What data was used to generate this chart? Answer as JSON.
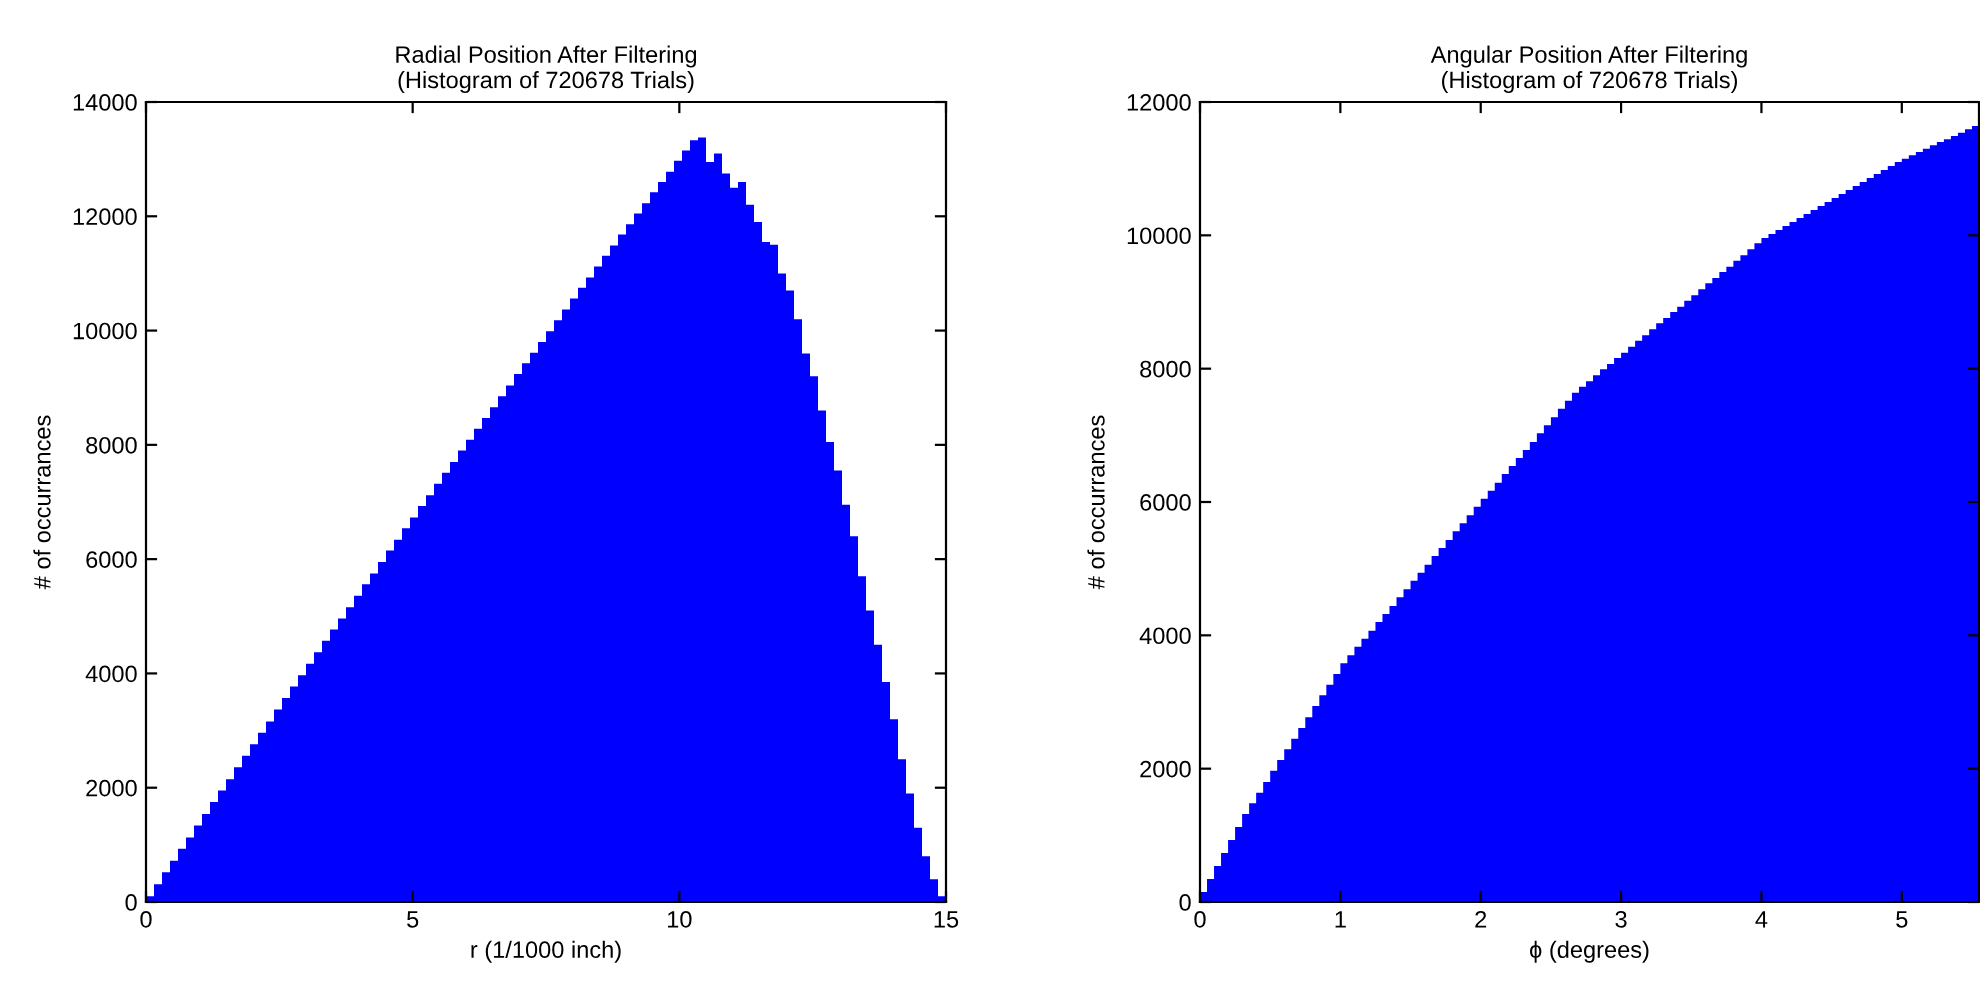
{
  "chart_data": [
    {
      "type": "histogram",
      "title": "Radial Position After Filtering\n(Histogram of 720678 Trials)",
      "xlabel": "r (1/1000 inch)",
      "ylabel": "# of occurrances",
      "color": "#0000ff",
      "bins": [
        0,
        0.15,
        0.3,
        0.45,
        0.6,
        0.75,
        0.9,
        1.05,
        1.2,
        1.35,
        1.5,
        1.65,
        1.8,
        1.95,
        2.1,
        2.25,
        2.4,
        2.55,
        2.7,
        2.85,
        3,
        3.15,
        3.3,
        3.45,
        3.6,
        3.75,
        3.9,
        4.05,
        4.2,
        4.35,
        4.5,
        4.65,
        4.8,
        4.95,
        5.1,
        5.25,
        5.4,
        5.55,
        5.7,
        5.85,
        6,
        6.15,
        6.3,
        6.45,
        6.6,
        6.75,
        6.9,
        7.05,
        7.2,
        7.35,
        7.5,
        7.65,
        7.8,
        7.95,
        8.1,
        8.25,
        8.4,
        8.55,
        8.7,
        8.85,
        9,
        9.15,
        9.3,
        9.45,
        9.6,
        9.75,
        9.9,
        10.05,
        10.2,
        10.35,
        10.5,
        10.65,
        10.8,
        10.95,
        11.1,
        11.25,
        11.4,
        11.55,
        11.7,
        11.85,
        12,
        12.15,
        12.3,
        12.45,
        12.6,
        12.75,
        12.9,
        13.05,
        13.2,
        13.35,
        13.5,
        13.65,
        13.8,
        13.95,
        14.1,
        14.25,
        14.4,
        14.55,
        14.7,
        14.85,
        15
      ],
      "values": [
        100,
        310,
        520,
        720,
        930,
        1130,
        1340,
        1540,
        1750,
        1950,
        2150,
        2360,
        2560,
        2760,
        2960,
        3160,
        3370,
        3570,
        3770,
        3970,
        4170,
        4370,
        4570,
        4770,
        4960,
        5160,
        5360,
        5560,
        5750,
        5950,
        6150,
        6340,
        6540,
        6730,
        6930,
        7120,
        7320,
        7510,
        7700,
        7900,
        8090,
        8280,
        8470,
        8660,
        8850,
        9040,
        9240,
        9430,
        9610,
        9800,
        9990,
        10180,
        10370,
        10560,
        10750,
        10930,
        11120,
        11310,
        11490,
        11680,
        11860,
        12050,
        12230,
        12420,
        12600,
        12780,
        12970,
        13150,
        13330,
        13380,
        12950,
        13100,
        12750,
        12500,
        12600,
        12200,
        11900,
        11550,
        11500,
        11000,
        10700,
        10200,
        9600,
        9200,
        8600,
        8050,
        7550,
        6950,
        6400,
        5700,
        5100,
        4500,
        3850,
        3200,
        2500,
        1900,
        1300,
        800,
        400,
        100
      ],
      "xlim": [
        0,
        15
      ],
      "xticks": [
        0,
        5,
        10,
        15
      ],
      "ylim": [
        0,
        14000
      ],
      "yticks": [
        0,
        2000,
        4000,
        6000,
        8000,
        10000,
        12000,
        14000
      ]
    },
    {
      "type": "histogram",
      "title": "Angular Position After Filtering\n(Histogram of 720678 Trials)",
      "xlabel": "ϕ (degrees)",
      "ylabel": "# of occurrances",
      "color": "#0000ff",
      "bins": [
        0,
        0.05,
        0.1,
        0.15,
        0.2,
        0.25,
        0.3,
        0.35,
        0.4,
        0.45,
        0.5,
        0.55,
        0.6,
        0.65,
        0.7,
        0.75,
        0.8,
        0.85,
        0.9,
        0.95,
        1,
        1.05,
        1.1,
        1.15,
        1.2,
        1.25,
        1.3,
        1.35,
        1.4,
        1.45,
        1.5,
        1.55,
        1.6,
        1.65,
        1.7,
        1.75,
        1.8,
        1.85,
        1.9,
        1.95,
        2,
        2.05,
        2.1,
        2.15,
        2.2,
        2.25,
        2.3,
        2.35,
        2.4,
        2.45,
        2.5,
        2.55,
        2.6,
        2.65,
        2.7,
        2.75,
        2.8,
        2.85,
        2.9,
        2.95,
        3,
        3.05,
        3.1,
        3.15,
        3.2,
        3.25,
        3.3,
        3.35,
        3.4,
        3.45,
        3.5,
        3.55,
        3.6,
        3.65,
        3.7,
        3.75,
        3.8,
        3.85,
        3.9,
        3.95,
        4,
        4.05,
        4.1,
        4.15,
        4.2,
        4.25,
        4.3,
        4.35,
        4.4,
        4.45,
        4.5,
        4.55,
        4.6,
        4.65,
        4.7,
        4.75,
        4.8,
        4.85,
        4.9,
        4.95,
        5,
        5.05,
        5.1,
        5.15,
        5.2,
        5.25,
        5.3,
        5.35,
        5.4,
        5.45,
        5.5,
        5.55
      ],
      "values": [
        150,
        345,
        540,
        735,
        930,
        1125,
        1320,
        1480,
        1640,
        1800,
        1970,
        2130,
        2290,
        2450,
        2610,
        2770,
        2940,
        3100,
        3260,
        3420,
        3580,
        3700,
        3830,
        3950,
        4070,
        4200,
        4320,
        4440,
        4570,
        4690,
        4820,
        4940,
        5060,
        5190,
        5310,
        5430,
        5560,
        5680,
        5800,
        5930,
        6050,
        6170,
        6290,
        6420,
        6540,
        6660,
        6780,
        6900,
        7030,
        7150,
        7270,
        7400,
        7520,
        7640,
        7730,
        7810,
        7900,
        7990,
        8070,
        8160,
        8240,
        8330,
        8420,
        8500,
        8590,
        8680,
        8760,
        8850,
        8930,
        9020,
        9100,
        9190,
        9280,
        9360,
        9450,
        9530,
        9620,
        9700,
        9790,
        9880,
        9960,
        10020,
        10080,
        10140,
        10200,
        10260,
        10320,
        10380,
        10440,
        10500,
        10560,
        10620,
        10680,
        10740,
        10800,
        10860,
        10920,
        10980,
        11040,
        11100,
        11150,
        11200,
        11250,
        11300,
        11350,
        11400,
        11440,
        11490,
        11540,
        11590,
        11640
      ],
      "xlim": [
        0,
        5.55
      ],
      "xticks": [
        0,
        1,
        2,
        3,
        4,
        5
      ],
      "ylim": [
        0,
        12000
      ],
      "yticks": [
        0,
        2000,
        4000,
        6000,
        8000,
        10000,
        12000
      ]
    }
  ]
}
